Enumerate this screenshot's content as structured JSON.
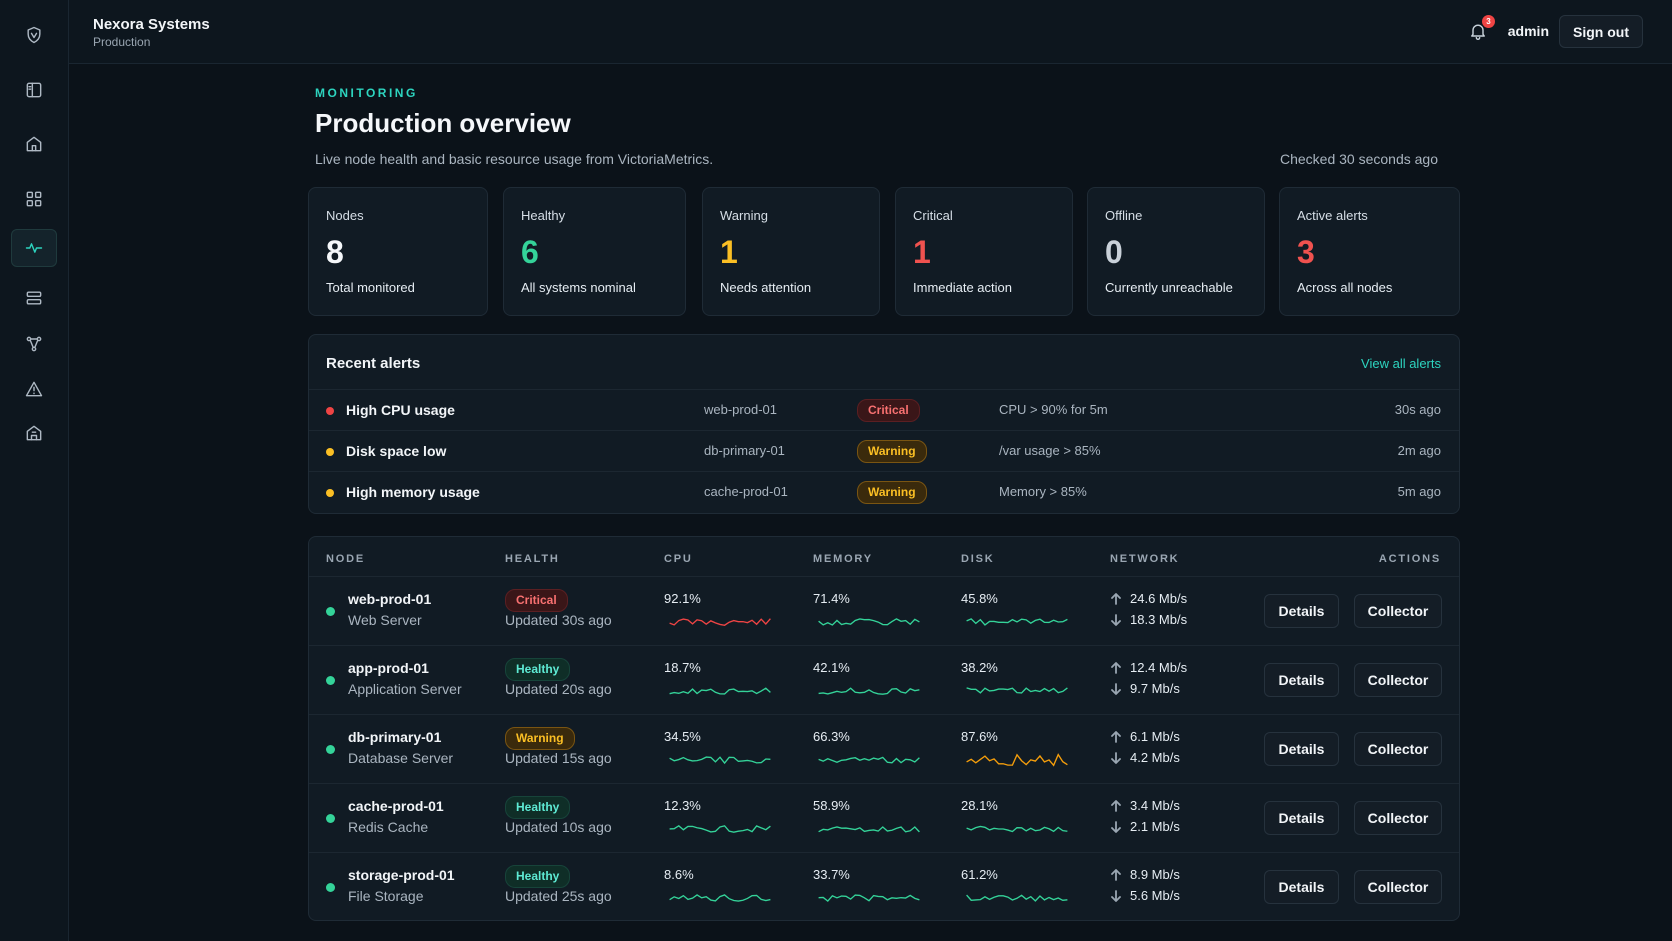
{
  "app": {
    "brand": "Nexora Systems",
    "environment": "Production"
  },
  "topbar": {
    "notification_count": "3",
    "user": "admin",
    "signout_label": "Sign out"
  },
  "sidebar": {
    "items": [
      {
        "icon": "shield-icon"
      },
      {
        "icon": "panel-icon"
      },
      {
        "icon": "home-icon"
      },
      {
        "icon": "grid-icon"
      },
      {
        "icon": "activity-icon",
        "active": true
      },
      {
        "icon": "server-icon"
      },
      {
        "icon": "topology-icon"
      },
      {
        "icon": "warning-icon"
      },
      {
        "icon": "building-icon"
      }
    ]
  },
  "header": {
    "eyebrow": "MONITORING",
    "title": "Production overview",
    "subtitle": "Live node health and basic resource usage from VictoriaMetrics.",
    "checked": "Checked 30 seconds ago"
  },
  "stats": [
    {
      "label": "Nodes",
      "value": "8",
      "desc": "Total monitored",
      "color": "#f5f7fa"
    },
    {
      "label": "Healthy",
      "value": "6",
      "desc": "All systems nominal",
      "color": "#34d399"
    },
    {
      "label": "Warning",
      "value": "1",
      "desc": "Needs attention",
      "color": "#fbbf24"
    },
    {
      "label": "Critical",
      "value": "1",
      "desc": "Immediate action",
      "color": "#f0524f"
    },
    {
      "label": "Offline",
      "value": "0",
      "desc": "Currently unreachable",
      "color": "#c9d1d9"
    },
    {
      "label": "Active alerts",
      "value": "3",
      "desc": "Across all nodes",
      "color": "#f0524f"
    }
  ],
  "alerts": {
    "title": "Recent alerts",
    "view_all": "View all alerts",
    "rows": [
      {
        "name": "High CPU usage",
        "node": "web-prod-01",
        "severity": "Critical",
        "condition": "CPU > 90% for 5m",
        "time": "30s ago",
        "dot": "#ef4444"
      },
      {
        "name": "Disk space low",
        "node": "db-primary-01",
        "severity": "Warning",
        "condition": "/var usage > 85%",
        "time": "2m ago",
        "dot": "#fbbf24"
      },
      {
        "name": "High memory usage",
        "node": "cache-prod-01",
        "severity": "Warning",
        "condition": "Memory > 85%",
        "time": "5m ago",
        "dot": "#fbbf24"
      }
    ]
  },
  "table": {
    "headers": {
      "node": "NODE",
      "health": "HEALTH",
      "cpu": "CPU",
      "memory": "MEMORY",
      "disk": "DISK",
      "network": "NETWORK",
      "actions": "ACTIONS"
    },
    "details_label": "Details",
    "collector_label": "Collector",
    "rows": [
      {
        "name": "web-prod-01",
        "role": "Web Server",
        "health": "Critical",
        "updated": "Updated 30s ago",
        "cpu": "92.1%",
        "memory": "71.4%",
        "disk": "45.8%",
        "up": "24.6 Mb/s",
        "down": "18.3 Mb/s"
      },
      {
        "name": "app-prod-01",
        "role": "Application Server",
        "health": "Healthy",
        "updated": "Updated 20s ago",
        "cpu": "18.7%",
        "memory": "42.1%",
        "disk": "38.2%",
        "up": "12.4 Mb/s",
        "down": "9.7 Mb/s"
      },
      {
        "name": "db-primary-01",
        "role": "Database Server",
        "health": "Warning",
        "updated": "Updated 15s ago",
        "cpu": "34.5%",
        "memory": "66.3%",
        "disk": "87.6%",
        "up": "6.1 Mb/s",
        "down": "4.2 Mb/s"
      },
      {
        "name": "cache-prod-01",
        "role": "Redis Cache",
        "health": "Healthy",
        "updated": "Updated 10s ago",
        "cpu": "12.3%",
        "memory": "58.9%",
        "disk": "28.1%",
        "up": "3.4 Mb/s",
        "down": "2.1 Mb/s"
      },
      {
        "name": "storage-prod-01",
        "role": "File Storage",
        "health": "Healthy",
        "updated": "Updated 25s ago",
        "cpu": "8.6%",
        "memory": "33.7%",
        "disk": "61.2%",
        "up": "8.9 Mb/s",
        "down": "5.6 Mb/s"
      }
    ]
  },
  "colors": {
    "accent": "#2dd4bf",
    "healthy": "#34d399",
    "warning": "#fbbf24",
    "critical": "#ef4444"
  }
}
